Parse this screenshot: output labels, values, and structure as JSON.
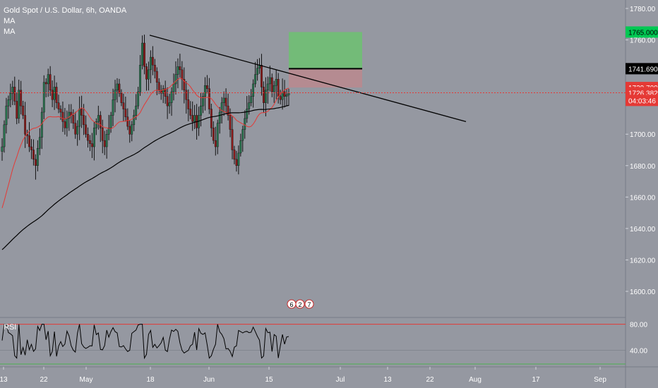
{
  "legend": {
    "title": "Gold Spot / U.S. Dollar, 6h, OANDA",
    "ma1": "MA",
    "ma2": "MA"
  },
  "rsi_label": "RSI",
  "colors": {
    "background": "#9598a1",
    "candle_up": "#26734d",
    "candle_down": "#8b1a1a",
    "ma_fast": "#e53935",
    "ma_slow": "#000000",
    "trendline": "#000000",
    "target_zone": "#6fbf73",
    "stop_zone": "#b88a8f",
    "price_line": "#e53935",
    "rsi_line": "#000000",
    "rsi_upper": "#e53935",
    "rsi_lower": "#4caf50"
  },
  "price_labels": [
    {
      "text": "1765.000",
      "kind": "target",
      "color": "#00c853",
      "text_color": "#000000",
      "value": 1765.0
    },
    {
      "text": "1741.690",
      "kind": "entry",
      "color": "#000000",
      "text_color": "#ffffff",
      "value": 1741.69
    },
    {
      "text": "1729.700",
      "kind": "stop",
      "color": "#e53935",
      "text_color": "#ffffff",
      "value": 1729.7
    },
    {
      "text": "1726.382",
      "kind": "last",
      "color": "#e53935",
      "text_color": "#ffffff",
      "value": 1726.382
    },
    {
      "text": "04:03:46",
      "kind": "countdown",
      "color": "#e53935",
      "text_color": "#ffffff",
      "value": 1721.5
    }
  ],
  "event_badges": [
    "6",
    "2",
    "7"
  ],
  "chart_data": {
    "type": "candlestick",
    "title": "Gold Spot / U.S. Dollar, 6h, OANDA",
    "y_axis": {
      "ticks": [
        1600,
        1620,
        1640,
        1660,
        1680,
        1700,
        1720,
        1740,
        1760,
        1780
      ],
      "labels": [
        "1600.00",
        "1620.00",
        "1640.00",
        "1660.00",
        "1680.00",
        "1700.00",
        "1720.00",
        "1740.00",
        "1760.00",
        "1780.00"
      ],
      "ylim": [
        1582,
        1788
      ]
    },
    "x_axis": {
      "labels": [
        "13",
        "22",
        "May",
        "18",
        "Jun",
        "15",
        "Jul",
        "13",
        "22",
        "Aug",
        "17",
        "Sep"
      ]
    },
    "candles": {
      "description": "6h OHLC candles from 13 Apr to 19 Jun",
      "close": [
        1692,
        1706,
        1718,
        1722,
        1726,
        1730,
        1721,
        1710,
        1728,
        1718,
        1712,
        1700,
        1699,
        1692,
        1690,
        1684,
        1680,
        1691,
        1698,
        1714,
        1733,
        1732,
        1738,
        1728,
        1722,
        1730,
        1720,
        1716,
        1714,
        1708,
        1704,
        1710,
        1714,
        1712,
        1707,
        1700,
        1705,
        1716,
        1712,
        1706,
        1700,
        1696,
        1694,
        1692,
        1704,
        1708,
        1712,
        1704,
        1696,
        1692,
        1700,
        1704,
        1712,
        1722,
        1728,
        1732,
        1726,
        1720,
        1716,
        1711,
        1705,
        1700,
        1706,
        1712,
        1718,
        1727,
        1744,
        1758,
        1743,
        1735,
        1741,
        1749,
        1744,
        1740,
        1733,
        1728,
        1726,
        1729,
        1724,
        1718,
        1720,
        1727,
        1732,
        1738,
        1743,
        1741,
        1735,
        1728,
        1722,
        1716,
        1712,
        1708,
        1712,
        1704,
        1712,
        1718,
        1724,
        1731,
        1729,
        1716,
        1704,
        1696,
        1692,
        1707,
        1714,
        1720,
        1723,
        1718,
        1712,
        1703,
        1690,
        1684,
        1680,
        1688,
        1696,
        1703,
        1710,
        1716,
        1720,
        1724,
        1732,
        1738,
        1742,
        1744,
        1730,
        1720,
        1728,
        1732,
        1736,
        1727,
        1731,
        1735,
        1724,
        1722,
        1727,
        1724,
        1725,
        1726
      ],
      "ohlc_high_low_min": 1660,
      "ohlc_high_low_max": 1764
    },
    "series": [
      {
        "name": "MA",
        "style": "short-period moving average"
      },
      {
        "name": "MA",
        "style": "long-period moving average"
      }
    ],
    "trendline": {
      "from": {
        "date": "18 May",
        "value": 1763
      },
      "to": {
        "date": "29 Jul",
        "value": 1708
      }
    },
    "position": {
      "entry": 1741.69,
      "target": 1765.0,
      "stop": 1729.7
    },
    "last_price": 1726.382,
    "rsi": {
      "levels": [
        "80.00",
        "40.00"
      ],
      "level_values": [
        80,
        40
      ],
      "range": [
        20,
        85
      ]
    }
  }
}
